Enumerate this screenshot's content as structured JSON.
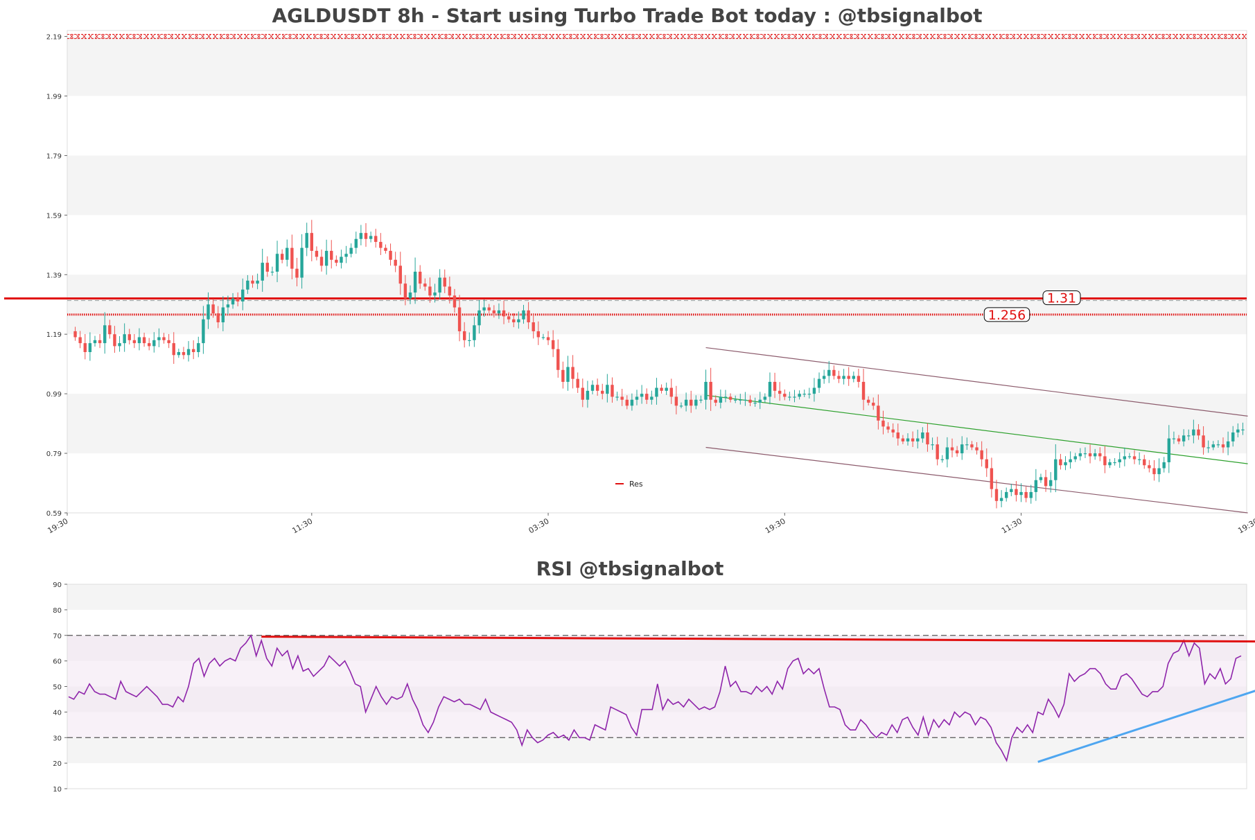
{
  "colors": {
    "up": "#26a69a",
    "down": "#ef5350",
    "resistance": "#e01010",
    "channel_outer": "#8b5a6b",
    "channel_mid": "#2ca02c",
    "rsi_line": "#8e24aa",
    "rsi_trend_up": "#4ea6f0",
    "band_fill": "#f4f4f4"
  },
  "chart_data": [
    {
      "type": "candlestick",
      "title": "AGLDUSDT 8h - Start using Turbo Trade Bot today : @tbsignalbot",
      "ylim": [
        0.59,
        2.21
      ],
      "y_ticks": [
        0.59,
        0.79,
        0.99,
        1.19,
        1.39,
        1.59,
        1.79,
        1.99,
        2.19
      ],
      "x_ticks": [
        "19:30",
        "11:30",
        "03:30",
        "19:30",
        "11:30",
        "19:30"
      ],
      "legend": {
        "label": "Res",
        "placement": "bottom-center"
      },
      "resistance_levels": [
        {
          "value": 1.31,
          "label": "1.31",
          "style": "solid"
        },
        {
          "value": 1.256,
          "label": "1.256",
          "style": "dotted"
        }
      ],
      "top_marker_level": 2.19,
      "channel": {
        "upper": [
          [
            128,
            1.145
          ],
          [
            238,
            0.915
          ]
        ],
        "middle": [
          [
            128,
            0.985
          ],
          [
            238,
            0.755
          ]
        ],
        "lower": [
          [
            128,
            0.81
          ],
          [
            238,
            0.59
          ]
        ]
      },
      "close": [
        1.18,
        1.16,
        1.13,
        1.16,
        1.17,
        1.16,
        1.22,
        1.19,
        1.15,
        1.16,
        1.19,
        1.17,
        1.16,
        1.18,
        1.16,
        1.15,
        1.17,
        1.18,
        1.17,
        1.16,
        1.12,
        1.13,
        1.12,
        1.14,
        1.13,
        1.16,
        1.24,
        1.29,
        1.26,
        1.23,
        1.28,
        1.29,
        1.31,
        1.3,
        1.34,
        1.37,
        1.36,
        1.37,
        1.43,
        1.4,
        1.4,
        1.46,
        1.44,
        1.48,
        1.41,
        1.38,
        1.48,
        1.53,
        1.47,
        1.45,
        1.42,
        1.47,
        1.44,
        1.43,
        1.45,
        1.46,
        1.48,
        1.51,
        1.53,
        1.51,
        1.52,
        1.5,
        1.48,
        1.47,
        1.44,
        1.42,
        1.36,
        1.31,
        1.33,
        1.4,
        1.36,
        1.35,
        1.32,
        1.33,
        1.38,
        1.35,
        1.32,
        1.28,
        1.2,
        1.17,
        1.17,
        1.22,
        1.27,
        1.28,
        1.27,
        1.26,
        1.27,
        1.25,
        1.24,
        1.23,
        1.24,
        1.27,
        1.23,
        1.2,
        1.18,
        1.18,
        1.17,
        1.14,
        1.07,
        1.03,
        1.08,
        1.04,
        1.01,
        0.97,
        1.0,
        1.02,
        1.0,
        0.99,
        1.02,
        0.98,
        0.98,
        0.97,
        0.95,
        0.97,
        0.98,
        0.99,
        0.97,
        0.98,
        1.01,
        1.0,
        1.01,
        0.98,
        0.95,
        0.95,
        0.97,
        0.95,
        0.97,
        0.97,
        1.03,
        0.97,
        0.96,
        0.98,
        0.98,
        0.97,
        0.97,
        0.97,
        0.97,
        0.96,
        0.96,
        0.97,
        0.98,
        1.03,
        1.0,
        0.99,
        0.98,
        0.98,
        0.98,
        0.99,
        0.99,
        0.99,
        1.01,
        1.04,
        1.05,
        1.07,
        1.05,
        1.04,
        1.05,
        1.04,
        1.05,
        1.03,
        0.97,
        0.96,
        0.95,
        0.9,
        0.88,
        0.87,
        0.86,
        0.84,
        0.83,
        0.84,
        0.83,
        0.84,
        0.86,
        0.82,
        0.82,
        0.77,
        0.77,
        0.81,
        0.8,
        0.79,
        0.82,
        0.82,
        0.81,
        0.8,
        0.77,
        0.74,
        0.67,
        0.63,
        0.64,
        0.66,
        0.67,
        0.65,
        0.66,
        0.64,
        0.66,
        0.7,
        0.71,
        0.68,
        0.7,
        0.77,
        0.75,
        0.76,
        0.77,
        0.78,
        0.79,
        0.79,
        0.78,
        0.79,
        0.78,
        0.75,
        0.76,
        0.76,
        0.77,
        0.78,
        0.78,
        0.77,
        0.77,
        0.75,
        0.74,
        0.72,
        0.74,
        0.76,
        0.84,
        0.84,
        0.83,
        0.85,
        0.85,
        0.87,
        0.85,
        0.81,
        0.81,
        0.82,
        0.82,
        0.81,
        0.83,
        0.86,
        0.87,
        0.87
      ],
      "volatility_note": "",
      "series": [
        {
          "name": "Res",
          "type": "horizontal-level",
          "values": [
            1.31,
            1.256
          ]
        }
      ]
    },
    {
      "type": "line",
      "title": "RSI @tbsignalbot",
      "ylim": [
        10,
        90
      ],
      "y_ticks": [
        10,
        20,
        30,
        40,
        50,
        60,
        70,
        80,
        90
      ],
      "reference_lines": [
        30,
        70
      ],
      "bands": [
        [
          20,
          30
        ],
        [
          40,
          50
        ],
        [
          60,
          70
        ],
        [
          80,
          90
        ]
      ],
      "trendlines": {
        "resistance": [
          [
            37,
            69.5
          ],
          [
            240,
            67.5
          ]
        ],
        "support": [
          [
            186,
            20.5
          ],
          [
            240,
            56.5
          ]
        ]
      },
      "values": [
        46,
        45,
        48,
        47,
        51,
        48,
        47,
        47,
        46,
        45,
        52,
        48,
        47,
        46,
        48,
        50,
        48,
        46,
        43,
        43,
        42,
        46,
        44,
        50,
        59,
        61,
        54,
        59,
        61,
        58,
        60,
        61,
        60,
        65,
        67,
        70,
        62,
        68,
        61,
        58,
        65,
        62,
        64,
        57,
        62,
        56,
        57,
        54,
        56,
        58,
        62,
        60,
        58,
        60,
        56,
        51,
        50,
        40,
        45,
        50,
        46,
        43,
        46,
        45,
        46,
        51,
        45,
        41,
        35,
        32,
        36,
        42,
        46,
        45,
        44,
        45,
        43,
        43,
        42,
        41,
        45,
        40,
        39,
        38,
        37,
        36,
        33,
        27,
        33,
        30,
        28,
        29,
        31,
        32,
        30,
        31,
        29,
        33,
        30,
        30,
        29,
        35,
        34,
        33,
        42,
        41,
        40,
        39,
        34,
        31,
        41,
        41,
        41,
        51,
        41,
        45,
        43,
        44,
        42,
        45,
        43,
        41,
        42,
        41,
        42,
        48,
        58,
        50,
        52,
        48,
        48,
        47,
        50,
        48,
        50,
        47,
        52,
        49,
        57,
        60,
        61,
        55,
        57,
        55,
        57,
        49,
        42,
        42,
        41,
        35,
        33,
        33,
        37,
        35,
        32,
        30,
        32,
        31,
        35,
        32,
        37,
        38,
        34,
        31,
        38,
        31,
        37,
        34,
        37,
        35,
        40,
        38,
        40,
        39,
        35,
        38,
        37,
        34,
        28,
        25,
        21,
        30,
        34,
        32,
        35,
        32,
        40,
        39,
        45,
        42,
        38,
        43,
        55,
        52,
        54,
        55,
        57,
        57,
        55,
        51,
        49,
        49,
        54,
        55,
        53,
        50,
        47,
        46,
        48,
        48,
        50,
        59,
        63,
        64,
        68,
        62,
        67,
        65,
        51,
        55,
        53,
        57,
        51,
        53,
        61,
        62
      ]
    }
  ]
}
